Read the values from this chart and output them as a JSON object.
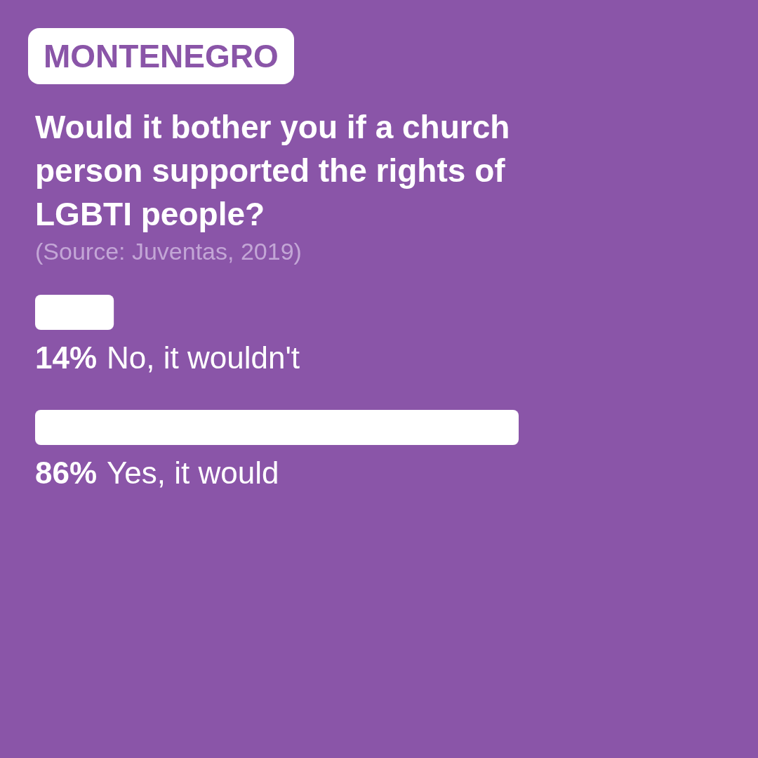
{
  "chart_data": {
    "type": "bar",
    "orientation": "horizontal",
    "title": "Would it bother you if a church person supported the rights of LGBTI people?",
    "annotations": [
      "MONTENEGRO",
      "(Source: Juventas, 2019)"
    ],
    "categories": [
      "No, it wouldn't",
      "Yes, it would"
    ],
    "values": [
      14,
      86
    ],
    "value_labels": [
      "14%",
      "86%"
    ],
    "color": "#ffffff",
    "tick_labels": "y"
  }
}
